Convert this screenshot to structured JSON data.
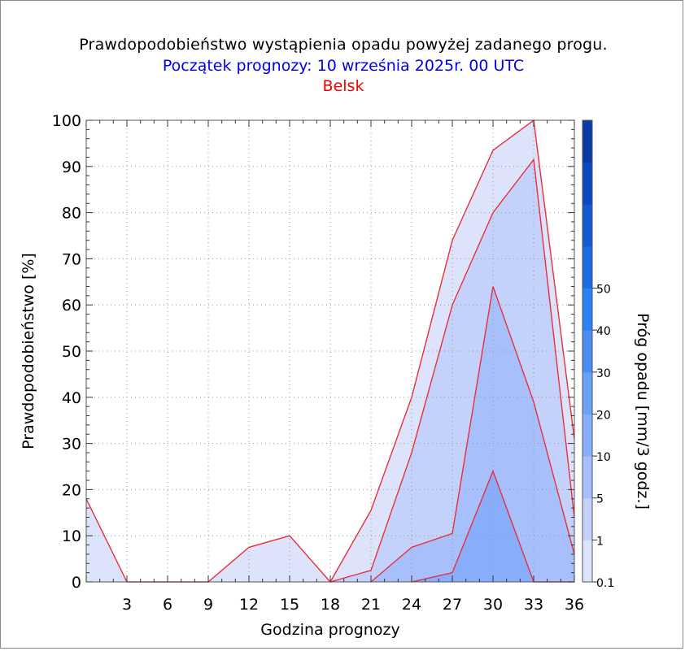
{
  "title": "Prawdopodobieństwo wystąpienia opadu powyżej zadanego progu.",
  "subtitle": "Początek prognozy: 10 września 2025r. 00 UTC",
  "location": "Belsk",
  "colors": {
    "outline": "#e8303a",
    "fill_0_1": "#dde3fb",
    "fill_1": "#c3d1fb",
    "fill_5": "#a7bffb",
    "fill_10": "#88adfa",
    "fill_20": "#6aa2f7",
    "colorbar": [
      "#dde3fb",
      "#c3d1fb",
      "#a7bffb",
      "#88adfa",
      "#6aa2f7",
      "#4a8ef4",
      "#2a82f3",
      "#1a6be4",
      "#1259d2",
      "#0c48bf",
      "#0a3aa8"
    ]
  },
  "chart_data": {
    "type": "area",
    "title": "Prawdopodobieństwo wystąpienia opadu powyżej zadanego progu.",
    "xlabel": "Godzina prognozy",
    "ylabel": "Prawdopodobieństwo [%]",
    "xlim": [
      0,
      36
    ],
    "ylim": [
      0,
      100
    ],
    "x_ticks": [
      3,
      6,
      9,
      12,
      15,
      18,
      21,
      24,
      27,
      30,
      33,
      36
    ],
    "y_ticks": [
      0,
      10,
      20,
      30,
      40,
      50,
      60,
      70,
      80,
      90,
      100
    ],
    "x": [
      0,
      3,
      6,
      9,
      12,
      15,
      18,
      21,
      24,
      27,
      30,
      33,
      36
    ],
    "series": [
      {
        "threshold": 0.1,
        "values": [
          18,
          0,
          0,
          0,
          7.5,
          10,
          0,
          15.5,
          40,
          74,
          93.5,
          100,
          31
        ]
      },
      {
        "threshold": 1,
        "values": [
          0,
          0,
          0,
          0,
          0,
          0,
          0,
          2.5,
          28,
          60,
          80,
          91.5,
          14
        ]
      },
      {
        "threshold": 5,
        "values": [
          0,
          0,
          0,
          0,
          0,
          0,
          0,
          0,
          7.5,
          10.5,
          64,
          39,
          6
        ]
      },
      {
        "threshold": 10,
        "values": [
          0,
          0,
          0,
          0,
          0,
          0,
          0,
          0,
          0,
          2,
          24,
          0,
          0
        ]
      }
    ],
    "colorbar": {
      "label": "Próg opadu [mm/3 godz.]",
      "tick_labels": [
        "0.1",
        "1",
        "5",
        "10",
        "20",
        "30",
        "40",
        "50"
      ]
    },
    "grid": true
  }
}
